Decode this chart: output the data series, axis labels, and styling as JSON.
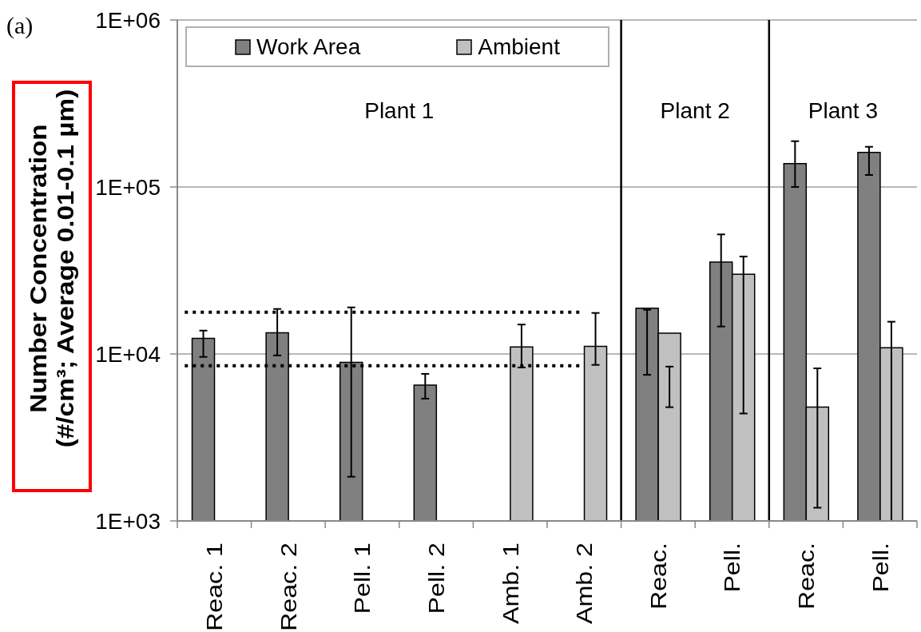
{
  "chart_data": {
    "type": "bar",
    "title": "(a)",
    "ylabel": "Number Concentration\n(#/cm³; Average 0.01-0.1 µm)",
    "categories": [
      "Reac. 1",
      "Reac. 2",
      "Pell. 1",
      "Pell. 2",
      "Amb. 1",
      "Amb. 2",
      "Reac.",
      "Pell.",
      "Reac.",
      "Pell."
    ],
    "series": [
      {
        "name": "Work Area",
        "color": "#808080",
        "values": [
          12400,
          13400,
          8900,
          6500,
          null,
          null,
          18800,
          35500,
          138000,
          161000
        ],
        "errors": [
          [
            9600,
            13800
          ],
          [
            9800,
            18600
          ],
          [
            1840,
            19000
          ],
          [
            5400,
            7600
          ],
          null,
          null,
          [
            7500,
            18400
          ],
          [
            14600,
            52000
          ],
          [
            100000,
            188000
          ],
          [
            118000,
            174000
          ]
        ]
      },
      {
        "name": "Ambient",
        "color": "#c0c0c0",
        "values": [
          null,
          null,
          null,
          null,
          11000,
          11100,
          13300,
          30000,
          4800,
          10900
        ],
        "errors": [
          null,
          null,
          null,
          null,
          [
            8300,
            15000
          ],
          [
            8600,
            17600
          ],
          [
            4800,
            8400
          ],
          [
            4400,
            38300
          ],
          [
            1200,
            8200
          ],
          [
            1000,
            15600
          ]
        ]
      }
    ],
    "log": true,
    "ylim": [
      1000,
      1000000
    ],
    "yticks": [
      {
        "value": 1000,
        "label": "1E+03"
      },
      {
        "value": 10000,
        "label": "1E+04"
      },
      {
        "value": 100000,
        "label": "1E+05"
      },
      {
        "value": 1000000,
        "label": "1E+06"
      }
    ],
    "grid": "y",
    "legend": "top",
    "ref_lines": [
      {
        "axis": "y",
        "value": 17800,
        "color": "#000000",
        "line_style": "dotted"
      },
      {
        "axis": "y",
        "value": 8500,
        "color": "#000000",
        "line_style": "dotted"
      }
    ],
    "annotations": [
      "Plant 1",
      "Plant 2",
      "Plant 3"
    ]
  }
}
